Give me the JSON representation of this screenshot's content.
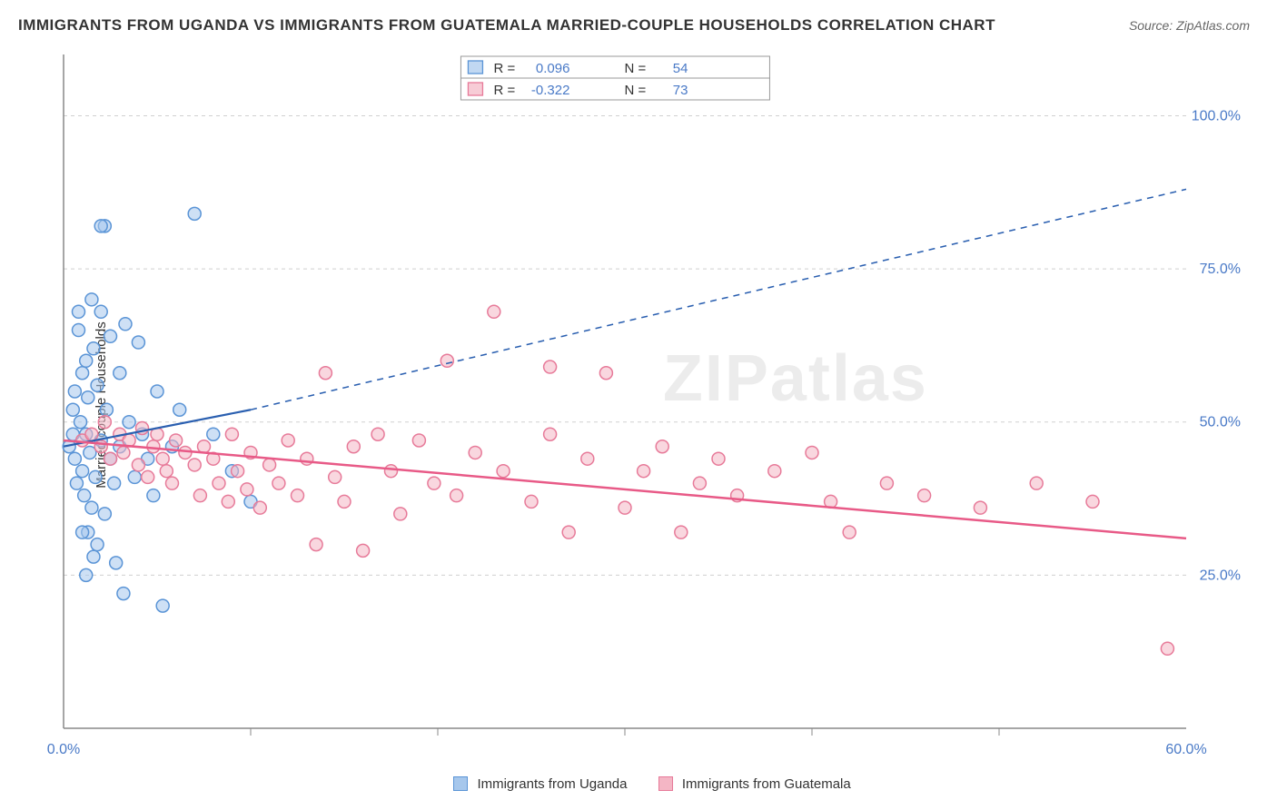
{
  "title": "IMMIGRANTS FROM UGANDA VS IMMIGRANTS FROM GUATEMALA MARRIED-COUPLE HOUSEHOLDS CORRELATION CHART",
  "source": "Source: ZipAtlas.com",
  "ylabel": "Married-couple Households",
  "watermark": "ZIPatlas",
  "chart": {
    "type": "scatter",
    "xlim": [
      0,
      60
    ],
    "ylim": [
      0,
      110
    ],
    "xtick_labels": [
      "0.0%",
      "60.0%"
    ],
    "xtick_positions": [
      0,
      60
    ],
    "xtick_minor": [
      10,
      20,
      30,
      40,
      50
    ],
    "ytick_labels": [
      "25.0%",
      "50.0%",
      "75.0%",
      "100.0%"
    ],
    "ytick_positions": [
      25,
      50,
      75,
      100
    ],
    "grid_color": "#d0d0d0",
    "axis_color": "#888",
    "background": "#ffffff",
    "marker_radius": 7,
    "marker_stroke_width": 1.5,
    "series": [
      {
        "name": "Immigrants from Uganda",
        "color_fill": "#a6c7ec",
        "color_stroke": "#5a94d6",
        "fill_opacity": 0.55,
        "R": "0.096",
        "N": "54",
        "trend": {
          "x1": 0,
          "y1": 46,
          "x2_solid": 10,
          "y2_solid": 52,
          "x2_dash": 60,
          "y2_dash": 88,
          "color": "#2a5fb0",
          "width": 2.2
        },
        "points": [
          [
            0.3,
            46
          ],
          [
            0.5,
            48
          ],
          [
            0.5,
            52
          ],
          [
            0.6,
            44
          ],
          [
            0.6,
            55
          ],
          [
            0.7,
            40
          ],
          [
            0.8,
            65
          ],
          [
            0.8,
            68
          ],
          [
            0.9,
            50
          ],
          [
            1.0,
            58
          ],
          [
            1.0,
            42
          ],
          [
            1.1,
            38
          ],
          [
            1.2,
            60
          ],
          [
            1.2,
            48
          ],
          [
            1.3,
            32
          ],
          [
            1.3,
            54
          ],
          [
            1.4,
            45
          ],
          [
            1.5,
            36
          ],
          [
            1.5,
            70
          ],
          [
            1.6,
            62
          ],
          [
            1.7,
            41
          ],
          [
            1.8,
            30
          ],
          [
            1.8,
            56
          ],
          [
            2.0,
            68
          ],
          [
            2.0,
            47
          ],
          [
            2.2,
            82
          ],
          [
            2.2,
            35
          ],
          [
            2.3,
            52
          ],
          [
            2.5,
            64
          ],
          [
            2.5,
            44
          ],
          [
            2.7,
            40
          ],
          [
            2.8,
            27
          ],
          [
            3.0,
            58
          ],
          [
            3.0,
            46
          ],
          [
            3.2,
            22
          ],
          [
            3.3,
            66
          ],
          [
            3.5,
            50
          ],
          [
            3.8,
            41
          ],
          [
            4.0,
            63
          ],
          [
            4.2,
            48
          ],
          [
            4.5,
            44
          ],
          [
            4.8,
            38
          ],
          [
            5.0,
            55
          ],
          [
            5.3,
            20
          ],
          [
            5.8,
            46
          ],
          [
            6.2,
            52
          ],
          [
            7.0,
            84
          ],
          [
            8.0,
            48
          ],
          [
            9.0,
            42
          ],
          [
            10.0,
            37
          ],
          [
            2.0,
            82
          ],
          [
            1.0,
            32
          ],
          [
            1.6,
            28
          ],
          [
            1.2,
            25
          ]
        ]
      },
      {
        "name": "Immigrants from Guatemala",
        "color_fill": "#f4b6c5",
        "color_stroke": "#e77a99",
        "fill_opacity": 0.55,
        "R": "-0.322",
        "N": "73",
        "trend": {
          "x1": 0,
          "y1": 47,
          "x2_solid": 60,
          "y2_solid": 31,
          "x2_dash": 60,
          "y2_dash": 31,
          "color": "#e85a87",
          "width": 2.5
        },
        "points": [
          [
            1.0,
            47
          ],
          [
            1.5,
            48
          ],
          [
            2.0,
            46
          ],
          [
            2.2,
            50
          ],
          [
            2.5,
            44
          ],
          [
            3.0,
            48
          ],
          [
            3.2,
            45
          ],
          [
            3.5,
            47
          ],
          [
            4.0,
            43
          ],
          [
            4.2,
            49
          ],
          [
            4.5,
            41
          ],
          [
            4.8,
            46
          ],
          [
            5.0,
            48
          ],
          [
            5.3,
            44
          ],
          [
            5.5,
            42
          ],
          [
            5.8,
            40
          ],
          [
            6.0,
            47
          ],
          [
            6.5,
            45
          ],
          [
            7.0,
            43
          ],
          [
            7.3,
            38
          ],
          [
            7.5,
            46
          ],
          [
            8.0,
            44
          ],
          [
            8.3,
            40
          ],
          [
            8.8,
            37
          ],
          [
            9.0,
            48
          ],
          [
            9.3,
            42
          ],
          [
            9.8,
            39
          ],
          [
            10.0,
            45
          ],
          [
            10.5,
            36
          ],
          [
            11.0,
            43
          ],
          [
            11.5,
            40
          ],
          [
            12.0,
            47
          ],
          [
            12.5,
            38
          ],
          [
            13.0,
            44
          ],
          [
            13.5,
            30
          ],
          [
            14.0,
            58
          ],
          [
            14.5,
            41
          ],
          [
            15.0,
            37
          ],
          [
            15.5,
            46
          ],
          [
            16.0,
            29
          ],
          [
            16.8,
            48
          ],
          [
            17.5,
            42
          ],
          [
            18.0,
            35
          ],
          [
            19.0,
            47
          ],
          [
            19.8,
            40
          ],
          [
            20.5,
            60
          ],
          [
            21.0,
            38
          ],
          [
            22.0,
            45
          ],
          [
            23.0,
            68
          ],
          [
            23.5,
            42
          ],
          [
            25.0,
            37
          ],
          [
            26.0,
            48
          ],
          [
            27.0,
            32
          ],
          [
            28.0,
            44
          ],
          [
            29.0,
            58
          ],
          [
            30.0,
            36
          ],
          [
            31.0,
            42
          ],
          [
            32.0,
            46
          ],
          [
            33.0,
            32
          ],
          [
            34.0,
            40
          ],
          [
            35.0,
            44
          ],
          [
            36.0,
            38
          ],
          [
            38.0,
            42
          ],
          [
            40.0,
            45
          ],
          [
            41.0,
            37
          ],
          [
            42.0,
            32
          ],
          [
            44.0,
            40
          ],
          [
            46.0,
            38
          ],
          [
            49.0,
            36
          ],
          [
            52.0,
            40
          ],
          [
            55.0,
            37
          ],
          [
            59.0,
            13
          ],
          [
            26.0,
            59
          ]
        ]
      }
    ]
  },
  "top_legend": {
    "r_label": "R =",
    "n_label": "N ="
  },
  "bottom_legend": {
    "s1": "Immigrants from Uganda",
    "s2": "Immigrants from Guatemala"
  }
}
